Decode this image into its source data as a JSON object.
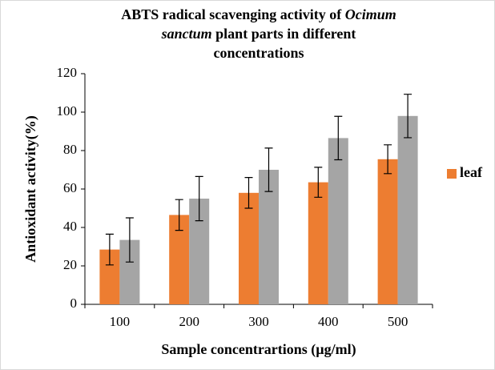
{
  "chart_data": {
    "type": "bar",
    "title_lines": [
      [
        {
          "text": "ABTS radical scavenging activity of ",
          "italic": false
        },
        {
          "text": "Ocimum",
          "italic": true
        }
      ],
      [
        {
          "text": "sanctum",
          "italic": true
        },
        {
          "text": " plant parts in different",
          "italic": false
        }
      ],
      [
        {
          "text": "concentrations",
          "italic": false
        }
      ]
    ],
    "x_label": "Sample concentrartions (µg/ml)",
    "y_label": "Antioxidant activity(%)",
    "categories": [
      "100",
      "200",
      "300",
      "400",
      "500"
    ],
    "series": [
      {
        "name": "leaf",
        "color": "#ed7d31",
        "values": [
          28.5,
          46.5,
          58,
          63.5,
          75.5
        ],
        "errors": [
          8,
          8,
          8,
          7.8,
          7.5
        ]
      },
      {
        "color": "#a5a5a5",
        "values": [
          33.5,
          55,
          70,
          86.5,
          98
        ],
        "errors": [
          11.5,
          11.5,
          11.3,
          11.3,
          11.3
        ]
      }
    ],
    "ylim": [
      0,
      120
    ],
    "yticks": [
      0,
      20,
      40,
      60,
      80,
      100,
      120
    ],
    "legend": "right"
  }
}
